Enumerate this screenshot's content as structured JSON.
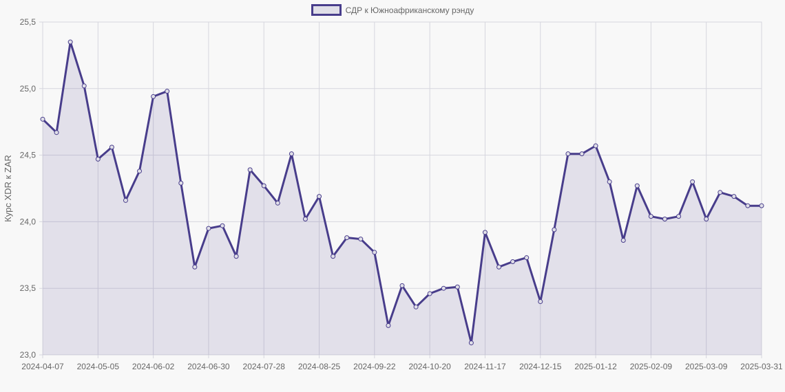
{
  "chart_data": {
    "type": "line",
    "title": "",
    "legend": {
      "label": "СДР к Южноафриканскому рэнду",
      "position": "top"
    },
    "xlabel": "",
    "ylabel": "Курс XDR к ZAR",
    "ylim": [
      23.0,
      25.5
    ],
    "yticks": [
      "23,0",
      "23,5",
      "24,0",
      "24,5",
      "25,0",
      "25,5"
    ],
    "ytick_values": [
      23.0,
      23.5,
      24.0,
      24.5,
      25.0,
      25.5
    ],
    "xtick_labels": [
      "2024-04-07",
      "2024-05-05",
      "2024-06-02",
      "2024-06-30",
      "2024-07-28",
      "2024-08-25",
      "2024-09-22",
      "2024-10-20",
      "2024-11-17",
      "2024-12-15",
      "2025-01-12",
      "2025-02-09",
      "2025-03-09",
      "2025-03-31"
    ],
    "xtick_indices": [
      0,
      4,
      8,
      12,
      16,
      20,
      24,
      28,
      32,
      36,
      40,
      44,
      48,
      52
    ],
    "grid": true,
    "series": [
      {
        "name": "СДР к Южноафриканскому рэнду",
        "color": "#483d8b",
        "fill": "rgba(72,61,139,0.12)",
        "values": [
          24.77,
          24.67,
          25.35,
          25.02,
          24.47,
          24.56,
          24.16,
          24.38,
          24.94,
          24.98,
          24.29,
          23.66,
          23.95,
          23.97,
          23.74,
          24.39,
          24.27,
          24.14,
          24.51,
          24.02,
          24.19,
          23.74,
          23.88,
          23.87,
          23.77,
          23.22,
          23.52,
          23.36,
          23.46,
          23.5,
          23.51,
          23.09,
          23.92,
          23.66,
          23.7,
          23.73,
          23.4,
          23.94,
          24.51,
          24.51,
          24.57,
          24.3,
          23.86,
          24.27,
          24.04,
          24.02,
          24.04,
          24.3,
          24.02,
          24.22,
          24.19,
          24.12,
          24.12
        ]
      }
    ]
  },
  "colors": {
    "line": "#483d8b",
    "fill": "#e0dfe8",
    "grid": "#d6d6de",
    "background": "#f8f8f8"
  }
}
